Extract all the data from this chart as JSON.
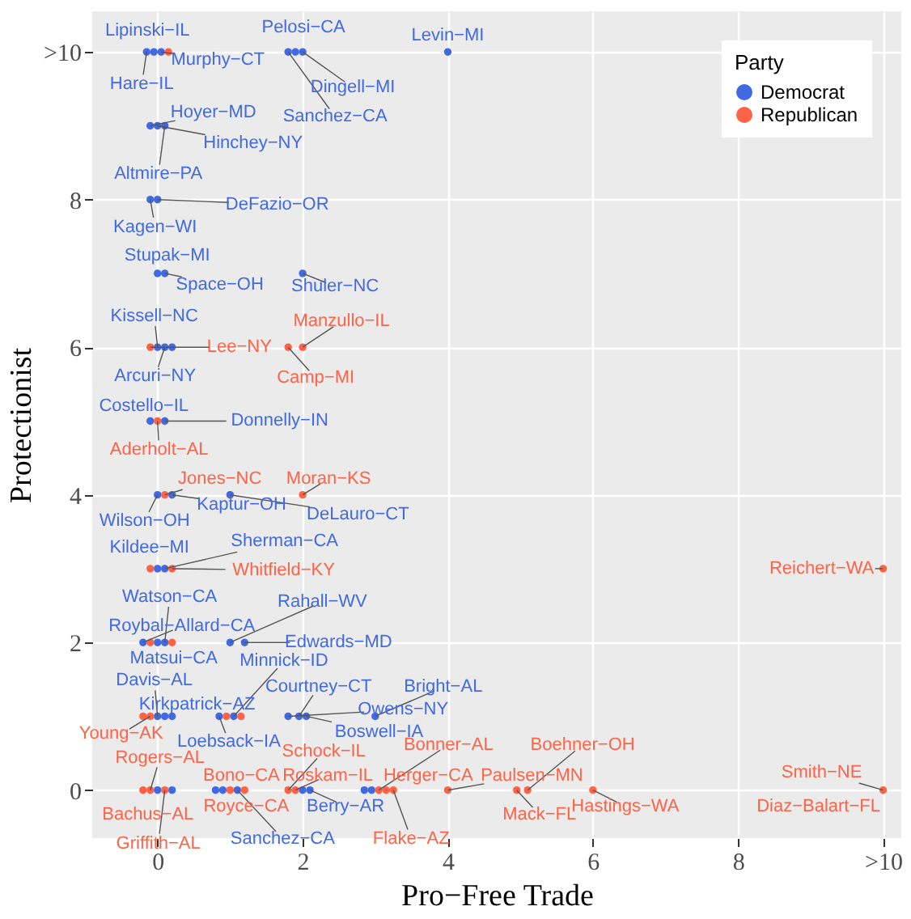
{
  "chart_data": {
    "type": "scatter",
    "xlabel": "Pro−Free Trade",
    "ylabel": "Protectionist",
    "legend_title": "Party",
    "legend": "top right",
    "grid": true,
    "marker": "circle",
    "xlim": [
      -0.9,
      10.25
    ],
    "ylim": [
      -0.65,
      10.55
    ],
    "xticks": [
      0,
      2,
      4,
      6,
      8,
      {
        "value": 10,
        "label": ">10"
      }
    ],
    "yticks": [
      0,
      2,
      4,
      6,
      8,
      {
        "value": 10,
        "label": ">10"
      }
    ],
    "series": [
      {
        "name": "Democrat",
        "color": "#4169e1",
        "x": [
          -0.15,
          -0.05,
          0.05,
          1.8,
          1.9,
          2.0,
          4.0,
          -0.1,
          0,
          0.1,
          -0.1,
          0,
          0,
          0.1,
          2.0,
          0,
          0.1,
          0.2,
          -0.1,
          0.1,
          0,
          0.2,
          1.0,
          0,
          0.1,
          -0.2,
          0,
          0.1,
          1.0,
          1.2,
          0,
          0.1,
          0.2,
          0.85,
          1.05,
          1.8,
          1.95,
          2.05,
          3.0,
          0,
          0.2,
          0.8,
          0.9,
          1.1,
          2.0,
          2.1,
          2.85,
          2.95
        ],
        "values": [
          10,
          10,
          10,
          10,
          10,
          10,
          10,
          9,
          9,
          9,
          8,
          8,
          7,
          7,
          7,
          6,
          6,
          6,
          5,
          5,
          4,
          4,
          4,
          3,
          3,
          2,
          2,
          2,
          2,
          2,
          1,
          1,
          1,
          1,
          1,
          1,
          1,
          1,
          1,
          0,
          0,
          0,
          0,
          0,
          0,
          0,
          0,
          0
        ]
      },
      {
        "name": "Republican",
        "color": "#ff6347",
        "x": [
          0.15,
          -0.1,
          1.8,
          2.0,
          0,
          0.1,
          2.0,
          -0.1,
          0.2,
          10,
          -0.1,
          0.2,
          -0.2,
          -0.1,
          0.95,
          1.15,
          -0.2,
          -0.1,
          0.1,
          1.0,
          1.2,
          1.8,
          1.9,
          3.05,
          3.15,
          3.25,
          4,
          4.95,
          5.1,
          6,
          10
        ],
        "values": [
          10,
          6,
          6,
          6,
          5,
          4,
          4,
          3,
          3,
          3,
          2,
          2,
          1,
          1,
          1,
          1,
          0,
          0,
          0,
          0,
          0,
          0,
          0,
          0,
          0,
          0,
          0,
          0,
          0,
          0,
          0
        ]
      }
    ],
    "annotations": [
      {
        "text": "Hare−IL",
        "x": -0.15,
        "y": 10
      },
      {
        "text": "Lipinski−IL",
        "x": -0.05,
        "y": 10
      },
      {
        "text": "Murphy−CT",
        "x": 0.05,
        "y": 10
      },
      {
        "text": "Pelosi−CA",
        "x": 1.9,
        "y": 10
      },
      {
        "text": "Dingell−MI",
        "x": 2.0,
        "y": 10
      },
      {
        "text": "Sanchez−CA",
        "x": 1.8,
        "y": 10
      },
      {
        "text": "Levin−MI",
        "x": 4.0,
        "y": 10
      },
      {
        "text": "Hoyer−MD",
        "x": -0.1,
        "y": 9
      },
      {
        "text": "Hinchey−NY",
        "x": 0,
        "y": 9
      },
      {
        "text": "Altmire−PA",
        "x": 0.1,
        "y": 9
      },
      {
        "text": "Kagen−WI",
        "x": -0.1,
        "y": 8
      },
      {
        "text": "DeFazio−OR",
        "x": 0,
        "y": 8
      },
      {
        "text": "Stupak−MI",
        "x": 0,
        "y": 7
      },
      {
        "text": "Space−OH",
        "x": 0.1,
        "y": 7
      },
      {
        "text": "Shuler−NC",
        "x": 2.0,
        "y": 7
      },
      {
        "text": "Kissell−NC",
        "x": 0,
        "y": 6
      },
      {
        "text": "Lee−NY",
        "x": -0.1,
        "y": 6
      },
      {
        "text": "Arcuri−NY",
        "x": 0.1,
        "y": 6
      },
      {
        "text": "Manzullo−IL",
        "x": 2.0,
        "y": 6
      },
      {
        "text": "Camp−MI",
        "x": 1.8,
        "y": 6
      },
      {
        "text": "Costello−IL",
        "x": -0.1,
        "y": 5
      },
      {
        "text": "Aderholt−AL",
        "x": 0,
        "y": 5
      },
      {
        "text": "Donnelly−IN",
        "x": 0.1,
        "y": 5
      },
      {
        "text": "Jones−NC",
        "x": 0.1,
        "y": 4
      },
      {
        "text": "Wilson−OH",
        "x": 0,
        "y": 4
      },
      {
        "text": "Kaptur−OH",
        "x": 0.2,
        "y": 4
      },
      {
        "text": "DeLauro−CT",
        "x": 1.0,
        "y": 4
      },
      {
        "text": "Moran−KS",
        "x": 2.0,
        "y": 4
      },
      {
        "text": "Kildee−MI",
        "x": 0,
        "y": 3
      },
      {
        "text": "Whitfield−KY",
        "x": 0.2,
        "y": 3
      },
      {
        "text": "Sherman−CA",
        "x": 0.1,
        "y": 3
      },
      {
        "text": "Reichert−WA",
        "x": 10,
        "y": 3
      },
      {
        "text": "Watson−CA",
        "x": 0.1,
        "y": 2
      },
      {
        "text": "Matsui−CA",
        "x": 0,
        "y": 2
      },
      {
        "text": "Roybal−Allard−CA",
        "x": -0.2,
        "y": 2
      },
      {
        "text": "Rahall−WV",
        "x": 1.0,
        "y": 2
      },
      {
        "text": "Edwards−MD",
        "x": 1.2,
        "y": 2
      },
      {
        "text": "Davis−AL",
        "x": 0,
        "y": 1
      },
      {
        "text": "Young−AK",
        "x": -0.1,
        "y": 1
      },
      {
        "text": "Kirkpatrick−AZ",
        "x": 0.1,
        "y": 1
      },
      {
        "text": "Minnick−ID",
        "x": 1.05,
        "y": 1
      },
      {
        "text": "Loebsack−IA",
        "x": 0.85,
        "y": 1
      },
      {
        "text": "Courtney−CT",
        "x": 1.95,
        "y": 1
      },
      {
        "text": "Boswell−IA",
        "x": 2.05,
        "y": 1
      },
      {
        "text": "Owens−NY",
        "x": 1.8,
        "y": 1
      },
      {
        "text": "Bright−AL",
        "x": 3.0,
        "y": 1
      },
      {
        "text": "Rogers−AL",
        "x": -0.1,
        "y": 0
      },
      {
        "text": "Bachus−AL",
        "x": -0.2,
        "y": 0
      },
      {
        "text": "Griffith−AL",
        "x": 0.1,
        "y": 0
      },
      {
        "text": "Bono−CA",
        "x": 1.0,
        "y": 0
      },
      {
        "text": "Royce−CA",
        "x": 1.2,
        "y": 0
      },
      {
        "text": "Sanchez−CA",
        "x": 1.1,
        "y": 0
      },
      {
        "text": "Schock−IL",
        "x": 1.8,
        "y": 0
      },
      {
        "text": "Berry−AR",
        "x": 2.1,
        "y": 0
      },
      {
        "text": "Roskam−IL",
        "x": 1.9,
        "y": 0
      },
      {
        "text": "Bonner−AL",
        "x": 3.05,
        "y": 0
      },
      {
        "text": "Flake−AZ",
        "x": 3.25,
        "y": 0
      },
      {
        "text": "Herger−CA",
        "x": 3.15,
        "y": 0
      },
      {
        "text": "Paulsen−MN",
        "x": 4,
        "y": 0
      },
      {
        "text": "Mack−FL",
        "x": 4.95,
        "y": 0
      },
      {
        "text": "Boehner−OH",
        "x": 5.1,
        "y": 0
      },
      {
        "text": "Hastings−WA",
        "x": 6,
        "y": 0
      },
      {
        "text": "Smith−NE",
        "x": 10,
        "y": 0
      },
      {
        "text": "Diaz−Balart−FL",
        "x": 10,
        "y": 0
      }
    ]
  }
}
